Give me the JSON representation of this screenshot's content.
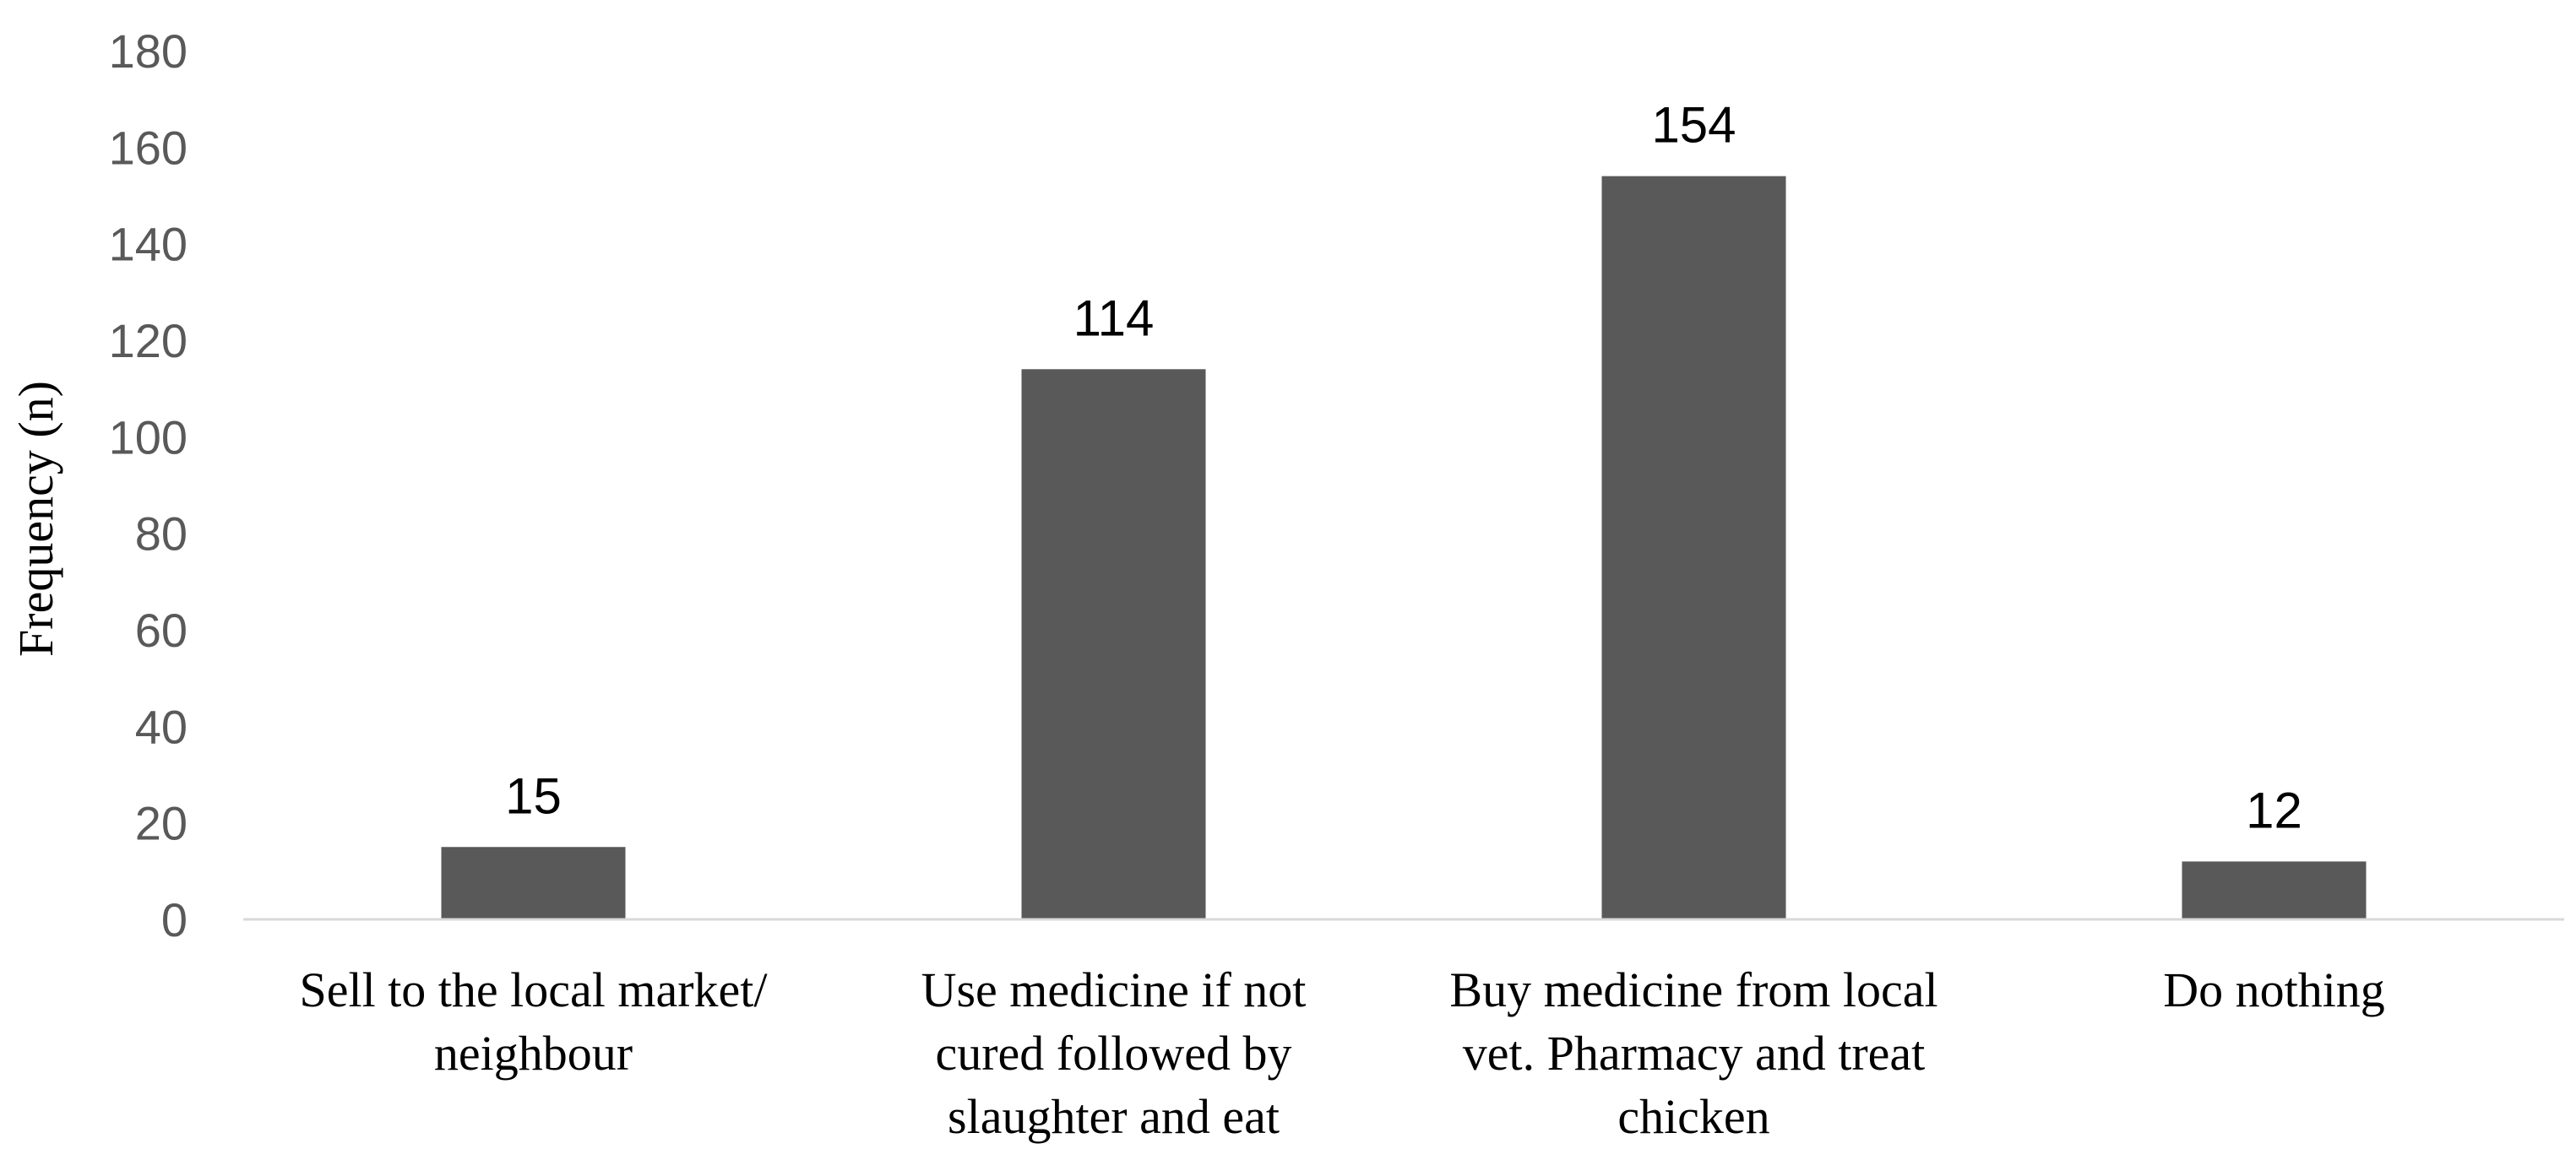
{
  "chart_data": {
    "type": "bar",
    "title": "",
    "xlabel": "",
    "ylabel": "Frequency (n)",
    "categories": [
      [
        "Sell to the local market/",
        "neighbour"
      ],
      [
        "Use medicine if not",
        "cured followed by",
        "slaughter and eat"
      ],
      [
        "Buy medicine from local",
        "vet. Pharmacy and treat",
        "chicken"
      ],
      [
        "Do nothing"
      ]
    ],
    "values": [
      15,
      114,
      154,
      12
    ],
    "data_labels": [
      "15",
      "114",
      "154",
      "12"
    ],
    "ylim": [
      0,
      180
    ],
    "yticks": [
      "0",
      "20",
      "40",
      "60",
      "80",
      "100",
      "120",
      "140",
      "160",
      "180"
    ],
    "grid": false,
    "legend": "none",
    "colors": {
      "bar": "#595959",
      "axis": "#d9d9d9"
    }
  }
}
